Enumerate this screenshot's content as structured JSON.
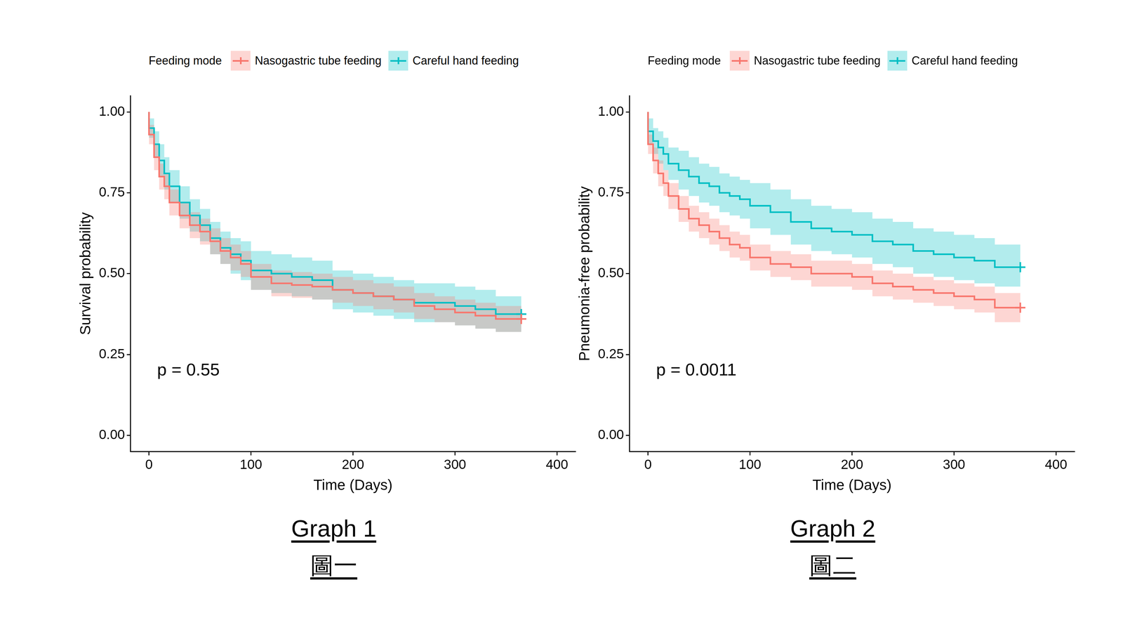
{
  "chart_data": [
    {
      "type": "line",
      "caption": "Graph 1",
      "caption_zh": "圖一",
      "legend": "top",
      "legend_title": "Feeding mode",
      "grid": false,
      "stepped": true,
      "x_label": "Time (Days)",
      "y_label": "Survival probability",
      "xlim": [
        -18,
        418
      ],
      "xticks": [
        0,
        100,
        200,
        300,
        400
      ],
      "ylim": [
        -0.05,
        1.05
      ],
      "yticks": [
        {
          "value": 0,
          "label": "0.00"
        },
        {
          "value": 0.25,
          "label": "0.25"
        },
        {
          "value": 0.5,
          "label": "0.50"
        },
        {
          "value": 0.75,
          "label": "0.75"
        },
        {
          "value": 1,
          "label": "1.00"
        }
      ],
      "annotations": [
        {
          "text": "p = 0.55",
          "x": 8,
          "y": 0.2
        }
      ],
      "x": [
        0,
        5,
        10,
        15,
        20,
        30,
        40,
        50,
        60,
        70,
        80,
        90,
        100,
        120,
        140,
        160,
        180,
        200,
        220,
        240,
        260,
        280,
        300,
        320,
        340,
        365
      ],
      "series": [
        {
          "name": "Nasogastric tube feeding",
          "color": "#F8766D",
          "marker": "cross",
          "values": [
            1.0,
            0.93,
            0.86,
            0.8,
            0.77,
            0.72,
            0.68,
            0.65,
            0.63,
            0.6,
            0.57,
            0.55,
            0.53,
            0.49,
            0.47,
            0.465,
            0.46,
            0.45,
            0.44,
            0.43,
            0.42,
            0.4,
            0.39,
            0.38,
            0.37,
            0.36
          ],
          "ci_lower": [
            1.0,
            0.9,
            0.82,
            0.76,
            0.73,
            0.68,
            0.64,
            0.61,
            0.59,
            0.56,
            0.53,
            0.51,
            0.49,
            0.45,
            0.43,
            0.425,
            0.42,
            0.41,
            0.4,
            0.39,
            0.38,
            0.36,
            0.35,
            0.34,
            0.33,
            0.32
          ],
          "ci_upper": [
            1.0,
            0.96,
            0.9,
            0.84,
            0.81,
            0.76,
            0.72,
            0.69,
            0.67,
            0.64,
            0.61,
            0.59,
            0.57,
            0.53,
            0.51,
            0.505,
            0.5,
            0.49,
            0.48,
            0.47,
            0.46,
            0.44,
            0.43,
            0.42,
            0.41,
            0.4
          ]
        },
        {
          "name": "Careful hand feeding",
          "color": "#00BFC4",
          "marker": "cross",
          "values": [
            1.0,
            0.95,
            0.9,
            0.85,
            0.81,
            0.77,
            0.72,
            0.68,
            0.65,
            0.61,
            0.58,
            0.56,
            0.54,
            0.51,
            0.5,
            0.49,
            0.48,
            0.45,
            0.44,
            0.43,
            0.42,
            0.41,
            0.41,
            0.4,
            0.39,
            0.375
          ],
          "ci_lower": [
            1.0,
            0.92,
            0.86,
            0.8,
            0.76,
            0.72,
            0.67,
            0.63,
            0.6,
            0.56,
            0.53,
            0.5,
            0.48,
            0.45,
            0.44,
            0.43,
            0.42,
            0.39,
            0.38,
            0.37,
            0.36,
            0.35,
            0.35,
            0.34,
            0.33,
            0.32
          ],
          "ci_upper": [
            1.0,
            0.98,
            0.94,
            0.9,
            0.86,
            0.82,
            0.77,
            0.73,
            0.7,
            0.66,
            0.63,
            0.61,
            0.6,
            0.57,
            0.56,
            0.55,
            0.54,
            0.51,
            0.5,
            0.49,
            0.48,
            0.47,
            0.47,
            0.46,
            0.45,
            0.43
          ]
        }
      ]
    },
    {
      "type": "line",
      "caption": "Graph 2",
      "caption_zh": "圖二",
      "legend": "top",
      "legend_title": "Feeding mode",
      "grid": false,
      "stepped": true,
      "x_label": "Time (Days)",
      "y_label": "Pneumonia-free probability",
      "xlim": [
        -18,
        418
      ],
      "xticks": [
        0,
        100,
        200,
        300,
        400
      ],
      "ylim": [
        -0.05,
        1.05
      ],
      "yticks": [
        {
          "value": 0,
          "label": "0.00"
        },
        {
          "value": 0.25,
          "label": "0.25"
        },
        {
          "value": 0.5,
          "label": "0.50"
        },
        {
          "value": 0.75,
          "label": "0.75"
        },
        {
          "value": 1,
          "label": "1.00"
        }
      ],
      "annotations": [
        {
          "text": "p = 0.0011",
          "x": 8,
          "y": 0.2
        }
      ],
      "x": [
        0,
        5,
        10,
        15,
        20,
        30,
        40,
        50,
        60,
        70,
        80,
        90,
        100,
        120,
        140,
        160,
        180,
        200,
        220,
        240,
        260,
        280,
        300,
        320,
        340,
        365
      ],
      "series": [
        {
          "name": "Nasogastric tube feeding",
          "color": "#F8766D",
          "marker": "cross",
          "values": [
            1.0,
            0.9,
            0.85,
            0.81,
            0.78,
            0.74,
            0.7,
            0.67,
            0.65,
            0.63,
            0.61,
            0.59,
            0.58,
            0.55,
            0.53,
            0.52,
            0.5,
            0.5,
            0.49,
            0.47,
            0.46,
            0.45,
            0.44,
            0.43,
            0.42,
            0.395
          ],
          "ci_lower": [
            1.0,
            0.87,
            0.81,
            0.77,
            0.74,
            0.7,
            0.66,
            0.63,
            0.61,
            0.59,
            0.57,
            0.55,
            0.54,
            0.51,
            0.49,
            0.48,
            0.46,
            0.46,
            0.45,
            0.43,
            0.42,
            0.41,
            0.4,
            0.39,
            0.38,
            0.35
          ],
          "ci_upper": [
            1.0,
            0.93,
            0.89,
            0.85,
            0.82,
            0.78,
            0.74,
            0.71,
            0.69,
            0.67,
            0.65,
            0.63,
            0.62,
            0.59,
            0.57,
            0.56,
            0.54,
            0.54,
            0.53,
            0.51,
            0.5,
            0.49,
            0.48,
            0.47,
            0.46,
            0.44
          ]
        },
        {
          "name": "Careful hand feeding",
          "color": "#00BFC4",
          "marker": "cross",
          "values": [
            1.0,
            0.94,
            0.91,
            0.89,
            0.87,
            0.84,
            0.82,
            0.8,
            0.78,
            0.77,
            0.75,
            0.74,
            0.73,
            0.71,
            0.69,
            0.66,
            0.64,
            0.63,
            0.62,
            0.6,
            0.59,
            0.57,
            0.56,
            0.55,
            0.54,
            0.52
          ],
          "ci_lower": [
            1.0,
            0.9,
            0.87,
            0.84,
            0.82,
            0.79,
            0.76,
            0.74,
            0.72,
            0.71,
            0.69,
            0.68,
            0.67,
            0.64,
            0.62,
            0.59,
            0.57,
            0.56,
            0.55,
            0.53,
            0.52,
            0.5,
            0.49,
            0.48,
            0.47,
            0.46
          ],
          "ci_upper": [
            1.0,
            0.98,
            0.95,
            0.94,
            0.92,
            0.89,
            0.88,
            0.86,
            0.84,
            0.83,
            0.81,
            0.8,
            0.79,
            0.78,
            0.76,
            0.73,
            0.71,
            0.7,
            0.69,
            0.67,
            0.66,
            0.64,
            0.63,
            0.62,
            0.61,
            0.59
          ]
        }
      ]
    }
  ]
}
